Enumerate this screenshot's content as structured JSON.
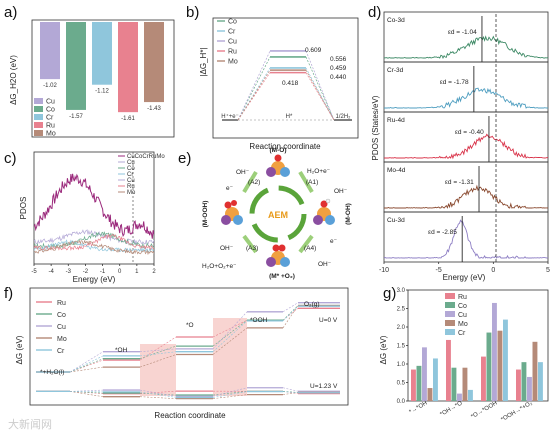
{
  "panels": {
    "a": {
      "label": "a)"
    },
    "b": {
      "label": "b)"
    },
    "c": {
      "label": "c)"
    },
    "d": {
      "label": "d)"
    },
    "e": {
      "label": "e)"
    },
    "f": {
      "label": "f)"
    },
    "g": {
      "label": "g)"
    }
  },
  "colors": {
    "Cu": "#b3a8d6",
    "Co": "#6bab8d",
    "Cr": "#8fc6dc",
    "Ru": "#e8818f",
    "Mo": "#b58a78",
    "CuCoCrRuMo": "#9b2a7c"
  },
  "chart_data": [
    {
      "panel": "a",
      "type": "bar",
      "ylabel": "ΔG_H2O (eV)",
      "categories": [
        "Cu",
        "Co",
        "Cr",
        "Ru",
        "Mo"
      ],
      "values": [
        -1.02,
        -1.57,
        -1.12,
        -1.61,
        -1.43
      ],
      "value_labels": [
        "-1.02",
        "-1.57",
        "-1.12",
        "-1.61",
        "-1.43"
      ],
      "legend": [
        "Cu",
        "Co",
        "Cr",
        "Ru",
        "Mo"
      ],
      "ylim": [
        -2.0,
        0
      ]
    },
    {
      "panel": "b",
      "type": "line",
      "ylabel": "|ΔG_H*|",
      "xlabel": "Reaction coordinate",
      "x_labels": [
        "H⁺+e⁻",
        "H*",
        "1/2H₂"
      ],
      "series": [
        {
          "name": "Co",
          "value": 0.556
        },
        {
          "name": "Cr",
          "value": 0.459
        },
        {
          "name": "Cu",
          "value": 0.609
        },
        {
          "name": "Ru",
          "value": 0.418
        },
        {
          "name": "Mo",
          "value": 0.44
        }
      ],
      "value_labels": [
        "0.609",
        "0.556",
        "0.459",
        "0.440",
        "0.418"
      ],
      "ylim": [
        0,
        0.75
      ]
    },
    {
      "panel": "c",
      "type": "line",
      "ylabel": "PDOS",
      "xlabel": "Energy (eV)",
      "xlim": [
        -5,
        2
      ],
      "x_ticks": [
        "-5",
        "-4",
        "-3",
        "-2",
        "-1",
        "0",
        "1",
        "2"
      ],
      "legend": [
        "CuCoCrRuMo",
        "Cu",
        "Co",
        "Cr",
        "Cu",
        "Ru",
        "Mo"
      ]
    },
    {
      "panel": "d",
      "type": "line",
      "ylabel": "PDOS (States/eV)",
      "xlabel": "Energy (eV)",
      "xlim": [
        -10,
        5
      ],
      "x_ticks": [
        "-10",
        "-5",
        "0",
        "5"
      ],
      "series": [
        {
          "name": "Co-3d",
          "d_band_center": -1.04,
          "label": "εd = -1.04"
        },
        {
          "name": "Cr-3d",
          "d_band_center": -1.78,
          "label": "εd = -1.78"
        },
        {
          "name": "Ru-4d",
          "d_band_center": -0.4,
          "label": "εd = -0.40"
        },
        {
          "name": "Mo-4d",
          "d_band_center": -1.31,
          "label": "εd = -1.31"
        },
        {
          "name": "Cu-3d",
          "d_band_center": -2.85,
          "label": "εd = -2.85"
        }
      ]
    },
    {
      "panel": "f",
      "type": "line",
      "ylabel": "ΔG (eV)",
      "xlabel": "Reaction coordinate",
      "legend": [
        "Ru",
        "Co",
        "Cu",
        "Mo",
        "Cr"
      ],
      "steps": [
        "*+H₂O(l)",
        "*OH",
        "*O",
        "*OOH",
        "O₂(g)"
      ],
      "potential_labels": [
        "U=0 V",
        "U=1.23 V"
      ]
    },
    {
      "panel": "g",
      "type": "bar",
      "ylabel": "ΔG (eV)",
      "categories": [
        "*→*OH",
        "*OH→*O",
        "*O→*OOH",
        "*OOH→*+O₂"
      ],
      "legend": [
        "Ru",
        "Co",
        "Cu",
        "Mo",
        "Cr"
      ],
      "ylim": [
        0,
        3.0
      ],
      "y_ticks": [
        "0.0",
        "0.5",
        "1.0",
        "1.5",
        "2.0",
        "2.5",
        "3.0"
      ],
      "series": [
        {
          "name": "Ru",
          "values": [
            0.85,
            1.65,
            1.2,
            0.85
          ]
        },
        {
          "name": "Co",
          "values": [
            0.95,
            0.9,
            1.85,
            1.05
          ]
        },
        {
          "name": "Cu",
          "values": [
            1.45,
            0.2,
            2.65,
            0.65
          ]
        },
        {
          "name": "Mo",
          "values": [
            0.35,
            0.9,
            1.9,
            1.6
          ]
        },
        {
          "name": "Cr",
          "values": [
            1.15,
            0.3,
            2.2,
            1.05
          ]
        }
      ]
    }
  ],
  "cycle": {
    "center": "AEM",
    "states": [
      "(M-O)",
      "(M-OH)",
      "(M* +O₂)",
      "(M-OOH)"
    ],
    "steps": [
      "(A1)",
      "(A2)",
      "(A3)",
      "(A4)"
    ],
    "reagents": [
      "H₂O+e⁻",
      "OH⁻",
      "e⁻",
      "OH⁻",
      "H₂O+O₂+e⁻",
      "OH⁻",
      "OH⁻",
      "e⁻"
    ]
  },
  "watermark": "大新闻网"
}
